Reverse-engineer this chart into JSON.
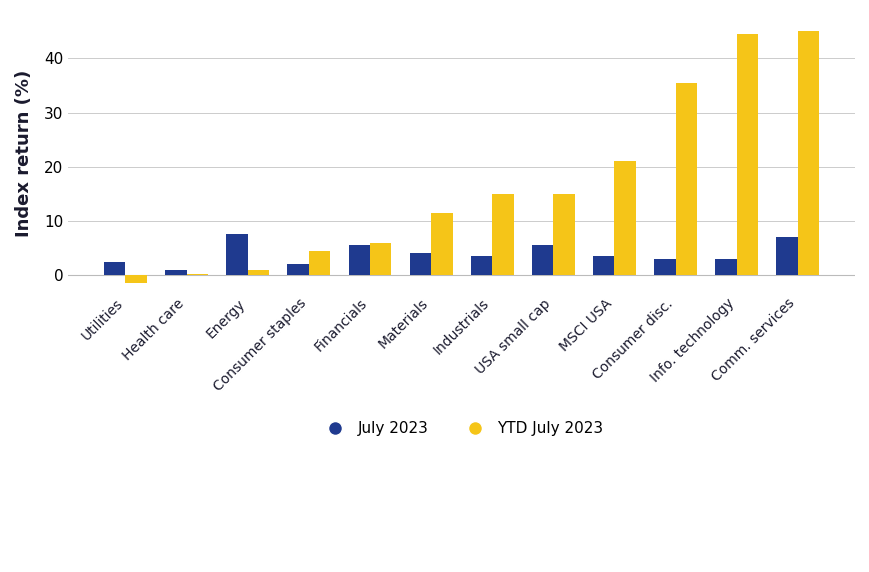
{
  "categories": [
    "Utilities",
    "Health care",
    "Energy",
    "Consumer staples",
    "Financials",
    "Materials",
    "Industrials",
    "USA small cap",
    "MSCI USA",
    "Consumer disc.",
    "Info. technology",
    "Comm. services"
  ],
  "july_2023": [
    2.5,
    1.0,
    7.5,
    2.0,
    5.5,
    4.0,
    3.5,
    5.5,
    3.5,
    3.0,
    3.0,
    7.0
  ],
  "ytd_july_2023": [
    -1.5,
    0.3,
    1.0,
    4.5,
    6.0,
    11.5,
    15.0,
    15.0,
    21.0,
    35.5,
    44.5,
    45.0
  ],
  "july_color": "#1f3a8f",
  "ytd_color": "#f5c518",
  "ylabel": "Index return (%)",
  "legend_july": "July 2023",
  "legend_ytd": "YTD July 2023",
  "ylim": [
    -3,
    48
  ],
  "yticks": [
    0,
    10,
    20,
    30,
    40
  ],
  "background_color": "#ffffff",
  "grid_color": "#cccccc",
  "bar_width": 0.35,
  "tick_fontsize": 11,
  "ylabel_fontsize": 13,
  "xlabel_fontsize": 10,
  "legend_fontsize": 11
}
